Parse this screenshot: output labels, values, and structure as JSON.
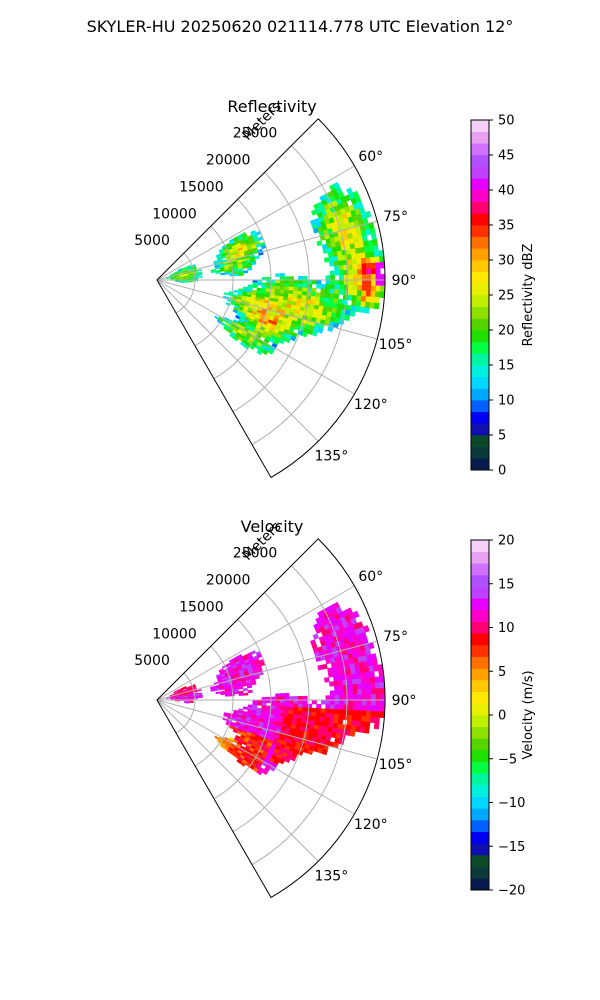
{
  "suptitle": "SKYLER-HU  20250620  021114.778 UTC Elevation 12°",
  "chart_data": [
    {
      "type": "heatmap",
      "projection": "polar-sector",
      "title": "Reflectivity",
      "range_axis_label": "Meters",
      "range_ticks": [
        "5000",
        "10000",
        "15000",
        "20000",
        "25000"
      ],
      "range_lim": [
        0,
        30000
      ],
      "azimuth_lim": [
        45,
        150
      ],
      "azimuth_ticks": [
        "60°",
        "75°",
        "90°",
        "105°",
        "120°",
        "135°"
      ],
      "grid": true,
      "colorbar": {
        "label": "Reflectivity dBZ",
        "range": [
          0,
          50
        ],
        "ticks": [
          "0",
          "5",
          "10",
          "15",
          "20",
          "25",
          "30",
          "35",
          "40",
          "45",
          "50"
        ],
        "colors": [
          "#071b4f",
          "#0a3a3a",
          "#0a4a28",
          "#1010b0",
          "#0000f0",
          "#0060ff",
          "#00a8ff",
          "#00d8ff",
          "#00f0e0",
          "#00f5a0",
          "#00ff40",
          "#20e000",
          "#55d400",
          "#90e000",
          "#c0f000",
          "#e8f000",
          "#ffe800",
          "#ffc800",
          "#ffa000",
          "#ff7000",
          "#ff3000",
          "#ff0000",
          "#ff0070",
          "#ff00c8",
          "#e800ff",
          "#c040ff",
          "#b050ff",
          "#d070ff",
          "#e8a0f0",
          "#f4d0f8"
        ]
      }
    },
    {
      "type": "heatmap",
      "projection": "polar-sector",
      "title": "Velocity",
      "range_axis_label": "Meters",
      "range_ticks": [
        "5000",
        "10000",
        "15000",
        "20000",
        "25000"
      ],
      "range_lim": [
        0,
        30000
      ],
      "azimuth_lim": [
        45,
        150
      ],
      "azimuth_ticks": [
        "60°",
        "75°",
        "90°",
        "105°",
        "120°",
        "135°"
      ],
      "grid": true,
      "colorbar": {
        "label": "Velocity (m/s)",
        "range": [
          -20,
          20
        ],
        "ticks": [
          "−20",
          "−15",
          "−10",
          "−5",
          "0",
          "5",
          "10",
          "15",
          "20"
        ],
        "colors": [
          "#071b4f",
          "#0a3a3a",
          "#0a4a28",
          "#1010b0",
          "#0000f0",
          "#0060ff",
          "#00a8ff",
          "#00d8ff",
          "#00f0e0",
          "#00f5a0",
          "#00ff40",
          "#20e000",
          "#55d400",
          "#90e000",
          "#c0f000",
          "#e8f000",
          "#ffe800",
          "#ffc800",
          "#ffa000",
          "#ff7000",
          "#ff3000",
          "#ff0000",
          "#ff0070",
          "#ff00c8",
          "#e800ff",
          "#c040ff",
          "#b050ff",
          "#d070ff",
          "#e8a0f0",
          "#f4d0f8"
        ]
      }
    }
  ]
}
